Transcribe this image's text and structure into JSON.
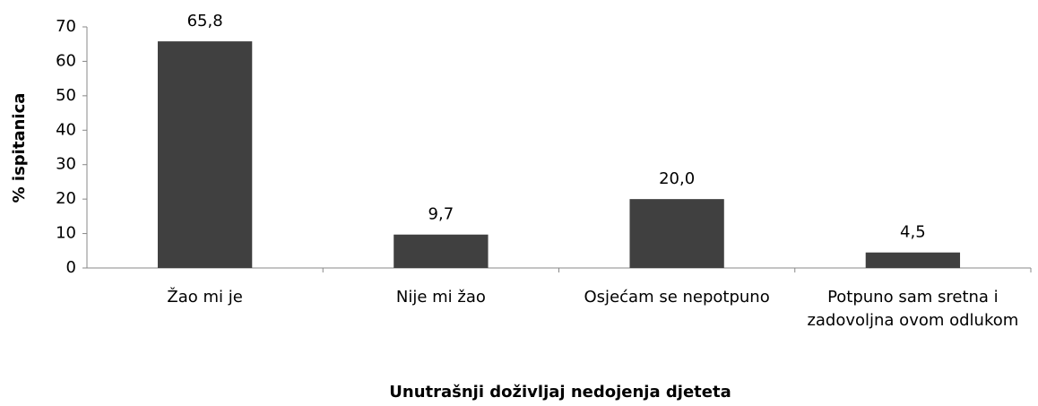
{
  "chart_data": {
    "type": "bar",
    "categories": [
      "Žao mi je",
      "Nije mi žao",
      "Osjećam se nepotpuno",
      "Potpuno sam sretna i zadovoljna ovom odlukom"
    ],
    "values": [
      65.8,
      9.7,
      20.0,
      4.5
    ],
    "value_labels": [
      "65,8",
      "9,7",
      "20,0",
      "4,5"
    ],
    "color": "#404040",
    "ylim": [
      0,
      70
    ],
    "yticks": [
      0,
      10,
      20,
      30,
      40,
      50,
      60,
      70
    ],
    "grid": false,
    "ylabel": "% ispitanica",
    "xlabel": "Unutrašnji doživljaj nedojenja djeteta"
  }
}
